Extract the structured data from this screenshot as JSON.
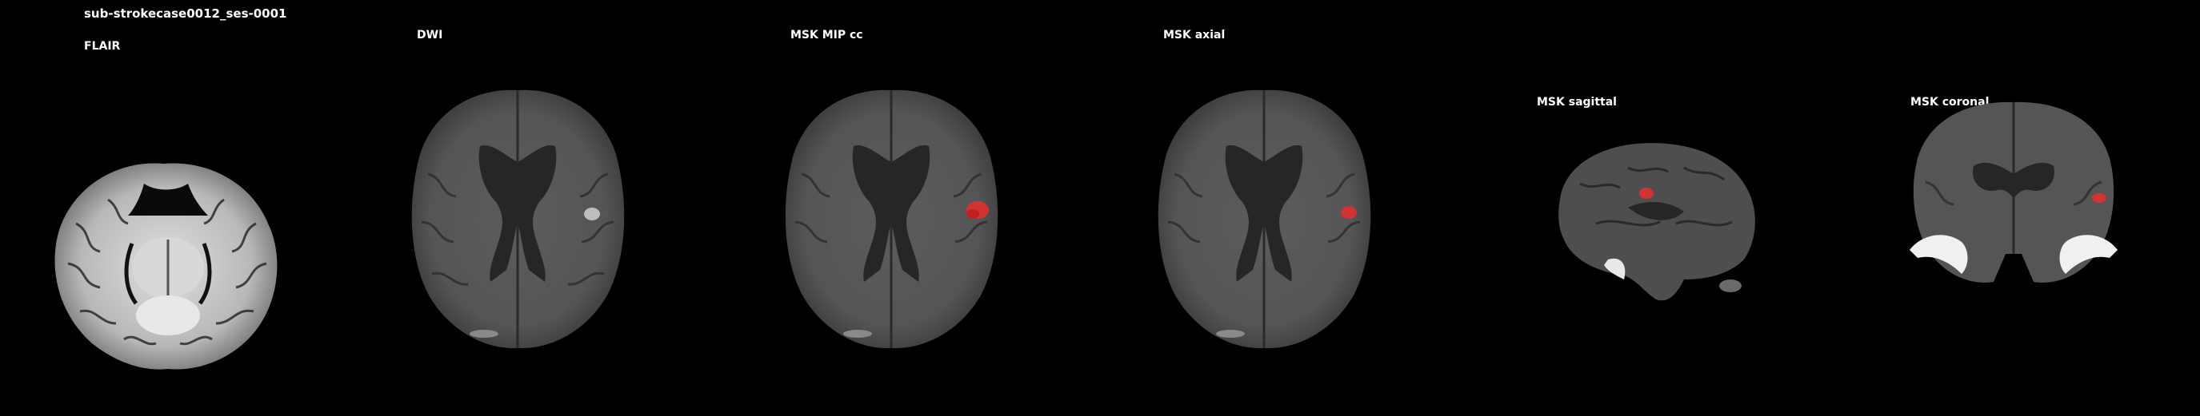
{
  "figure": {
    "subject_title": "sub-strokecase0012_ses-0001",
    "panels": [
      {
        "label": "FLAIR"
      },
      {
        "label": "DWI"
      },
      {
        "label": "MSK MIP cc"
      },
      {
        "label": "MSK axial"
      },
      {
        "label": "MSK sagittal"
      },
      {
        "label": "MSK coronal"
      }
    ]
  },
  "colors": {
    "background": "#000000",
    "lesion_mask": "#e03030"
  }
}
